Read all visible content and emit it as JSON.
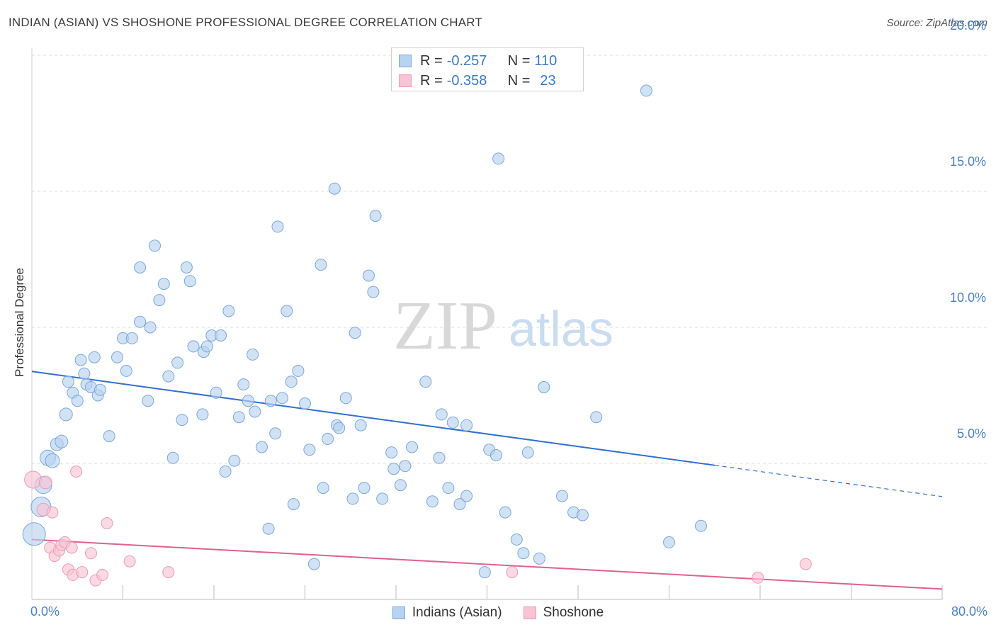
{
  "header": {
    "title": "INDIAN (ASIAN) VS SHOSHONE PROFESSIONAL DEGREE CORRELATION CHART",
    "source": "Source: ZipAtlas.com"
  },
  "watermark": {
    "zip": "ZIP",
    "atlas": "atlas"
  },
  "stats": [
    {
      "r_label": "R =",
      "r_value": "-0.257",
      "n_label": "N =",
      "n_value": "110"
    },
    {
      "r_label": "R =",
      "r_value": "-0.358",
      "n_label": "N =",
      "n_value": "23"
    }
  ],
  "legend": [
    {
      "label": "Indians (Asian)"
    },
    {
      "label": "Shoshone"
    }
  ],
  "colors": {
    "blue_fill": "#b8d3f0",
    "blue_stroke": "#7aa7dc",
    "blue_line": "#2f6fd0",
    "pink_fill": "#f8c4d4",
    "pink_stroke": "#ee9ab6",
    "pink_line": "#e0608e",
    "tick_text": "#4a80c8",
    "grid": "#dddddd"
  },
  "chart_data": {
    "type": "scatter",
    "title": "INDIAN (ASIAN) VS SHOSHONE PROFESSIONAL DEGREE CORRELATION CHART",
    "xlabel": "",
    "ylabel": "Professional Degree",
    "xlim": [
      0,
      80
    ],
    "ylim": [
      0,
      20.5
    ],
    "x_tick_labels": [
      {
        "value": 0,
        "label": "0.0%"
      },
      {
        "value": 80,
        "label": "80.0%"
      }
    ],
    "x_minor_ticks": [
      8,
      16,
      24,
      32,
      40,
      48,
      56,
      64,
      72
    ],
    "y_ticks": [
      {
        "value": 5,
        "label": "5.0%"
      },
      {
        "value": 10,
        "label": "10.0%"
      },
      {
        "value": 15,
        "label": "15.0%"
      },
      {
        "value": 20,
        "label": "20.0%"
      }
    ],
    "grid": true,
    "legend_position": "bottom-center",
    "series": [
      {
        "name": "Indians (Asian)",
        "r": -0.257,
        "n": 110,
        "trend": {
          "x0": 0,
          "y0": 8.38,
          "x1": 60.0,
          "y1": 4.93,
          "dash_to_x": 80,
          "dash_to_y": 3.78
        },
        "points": [
          [
            0.2,
            2.4,
            16
          ],
          [
            0.8,
            3.4,
            14
          ],
          [
            1.0,
            4.2,
            12
          ],
          [
            1.4,
            5.2,
            11
          ],
          [
            1.8,
            5.1,
            10
          ],
          [
            2.2,
            5.7,
            9
          ],
          [
            2.6,
            5.8,
            9
          ],
          [
            3.0,
            6.8,
            9
          ],
          [
            3.2,
            8.0,
            8
          ],
          [
            3.6,
            7.6,
            8
          ],
          [
            4.0,
            7.3,
            8
          ],
          [
            4.3,
            8.8,
            8
          ],
          [
            4.6,
            8.3,
            8
          ],
          [
            4.8,
            7.9,
            8
          ],
          [
            5.2,
            7.8,
            8
          ],
          [
            5.5,
            8.9,
            8
          ],
          [
            5.8,
            7.5,
            8
          ],
          [
            6.0,
            7.7,
            8
          ],
          [
            6.8,
            6.0,
            8
          ],
          [
            7.5,
            8.9,
            8
          ],
          [
            8.0,
            9.6,
            8
          ],
          [
            8.3,
            8.4,
            8
          ],
          [
            8.8,
            9.6,
            8
          ],
          [
            9.5,
            10.2,
            8
          ],
          [
            9.5,
            12.2,
            8
          ],
          [
            10.2,
            7.3,
            8
          ],
          [
            10.4,
            10.0,
            8
          ],
          [
            10.8,
            13.0,
            8
          ],
          [
            11.2,
            11.0,
            8
          ],
          [
            11.6,
            11.6,
            8
          ],
          [
            12.0,
            8.2,
            8
          ],
          [
            12.4,
            5.2,
            8
          ],
          [
            12.8,
            8.7,
            8
          ],
          [
            13.2,
            6.6,
            8
          ],
          [
            13.6,
            12.2,
            8
          ],
          [
            13.9,
            11.7,
            8
          ],
          [
            14.2,
            9.3,
            8
          ],
          [
            15.0,
            6.8,
            8
          ],
          [
            15.1,
            9.1,
            8
          ],
          [
            15.4,
            9.3,
            8
          ],
          [
            15.8,
            9.7,
            8
          ],
          [
            16.2,
            7.6,
            8
          ],
          [
            16.6,
            9.7,
            8
          ],
          [
            17.0,
            4.7,
            8
          ],
          [
            17.3,
            10.6,
            8
          ],
          [
            17.8,
            5.1,
            8
          ],
          [
            18.2,
            6.7,
            8
          ],
          [
            18.6,
            7.9,
            8
          ],
          [
            19.0,
            7.3,
            8
          ],
          [
            19.4,
            9.0,
            8
          ],
          [
            19.6,
            6.9,
            8
          ],
          [
            20.2,
            5.6,
            8
          ],
          [
            20.8,
            2.6,
            8
          ],
          [
            21.0,
            7.3,
            8
          ],
          [
            21.4,
            6.1,
            8
          ],
          [
            21.6,
            13.7,
            8
          ],
          [
            22.0,
            7.4,
            8
          ],
          [
            22.4,
            10.6,
            8
          ],
          [
            22.8,
            8.0,
            8
          ],
          [
            23.0,
            3.5,
            8
          ],
          [
            23.4,
            8.4,
            8
          ],
          [
            24.0,
            7.2,
            8
          ],
          [
            24.4,
            5.5,
            8
          ],
          [
            24.8,
            1.3,
            8
          ],
          [
            25.4,
            12.3,
            8
          ],
          [
            25.6,
            4.1,
            8
          ],
          [
            26.0,
            5.9,
            8
          ],
          [
            26.8,
            6.4,
            8
          ],
          [
            27.0,
            6.3,
            8
          ],
          [
            27.6,
            7.4,
            8
          ],
          [
            28.2,
            3.7,
            8
          ],
          [
            28.4,
            9.8,
            8
          ],
          [
            28.9,
            6.4,
            8
          ],
          [
            29.2,
            4.1,
            8
          ],
          [
            29.6,
            11.9,
            8
          ],
          [
            30.0,
            11.3,
            8
          ],
          [
            30.2,
            14.1,
            8
          ],
          [
            30.8,
            3.7,
            8
          ],
          [
            31.6,
            5.4,
            8
          ],
          [
            31.8,
            4.8,
            8
          ],
          [
            32.4,
            4.2,
            8
          ],
          [
            32.8,
            4.9,
            8
          ],
          [
            33.4,
            5.6,
            8
          ],
          [
            34.6,
            8.0,
            8
          ],
          [
            35.2,
            3.6,
            8
          ],
          [
            35.8,
            5.2,
            8
          ],
          [
            36.0,
            6.8,
            8
          ],
          [
            36.6,
            4.1,
            8
          ],
          [
            37.0,
            6.5,
            8
          ],
          [
            37.6,
            3.5,
            8
          ],
          [
            38.2,
            3.8,
            8
          ],
          [
            38.2,
            6.4,
            8
          ],
          [
            39.8,
            1.0,
            8
          ],
          [
            40.2,
            5.5,
            8
          ],
          [
            40.8,
            5.3,
            8
          ],
          [
            41.0,
            16.2,
            8
          ],
          [
            41.6,
            3.2,
            8
          ],
          [
            42.6,
            2.2,
            8
          ],
          [
            43.2,
            1.7,
            8
          ],
          [
            43.6,
            5.4,
            8
          ],
          [
            44.6,
            1.5,
            8
          ],
          [
            45.0,
            7.8,
            8
          ],
          [
            46.6,
            3.8,
            8
          ],
          [
            47.6,
            3.2,
            8
          ],
          [
            48.4,
            3.1,
            8
          ],
          [
            49.6,
            6.7,
            8
          ],
          [
            54.0,
            18.7,
            8
          ],
          [
            56.0,
            2.1,
            8
          ],
          [
            58.8,
            2.7,
            8
          ],
          [
            26.6,
            15.1,
            8
          ]
        ]
      },
      {
        "name": "Shoshone",
        "r": -0.358,
        "n": 23,
        "trend": {
          "x0": 0,
          "y0": 2.2,
          "x1": 80,
          "y1": 0.38
        },
        "points": [
          [
            0.1,
            4.4,
            12
          ],
          [
            1.0,
            3.3,
            9
          ],
          [
            1.2,
            4.3,
            9
          ],
          [
            1.6,
            1.9,
            8
          ],
          [
            1.8,
            3.2,
            8
          ],
          [
            2.0,
            1.6,
            8
          ],
          [
            2.4,
            1.8,
            8
          ],
          [
            2.6,
            2.0,
            8
          ],
          [
            2.9,
            2.1,
            8
          ],
          [
            3.2,
            1.1,
            8
          ],
          [
            3.5,
            1.9,
            8
          ],
          [
            3.6,
            0.9,
            8
          ],
          [
            3.9,
            4.7,
            8
          ],
          [
            4.4,
            1.0,
            8
          ],
          [
            5.2,
            1.7,
            8
          ],
          [
            5.6,
            0.7,
            8
          ],
          [
            6.2,
            0.9,
            8
          ],
          [
            6.6,
            2.8,
            8
          ],
          [
            8.6,
            1.4,
            8
          ],
          [
            12.0,
            1.0,
            8
          ],
          [
            42.2,
            1.0,
            8
          ],
          [
            63.8,
            0.8,
            8
          ],
          [
            68.0,
            1.3,
            8
          ]
        ]
      }
    ]
  }
}
